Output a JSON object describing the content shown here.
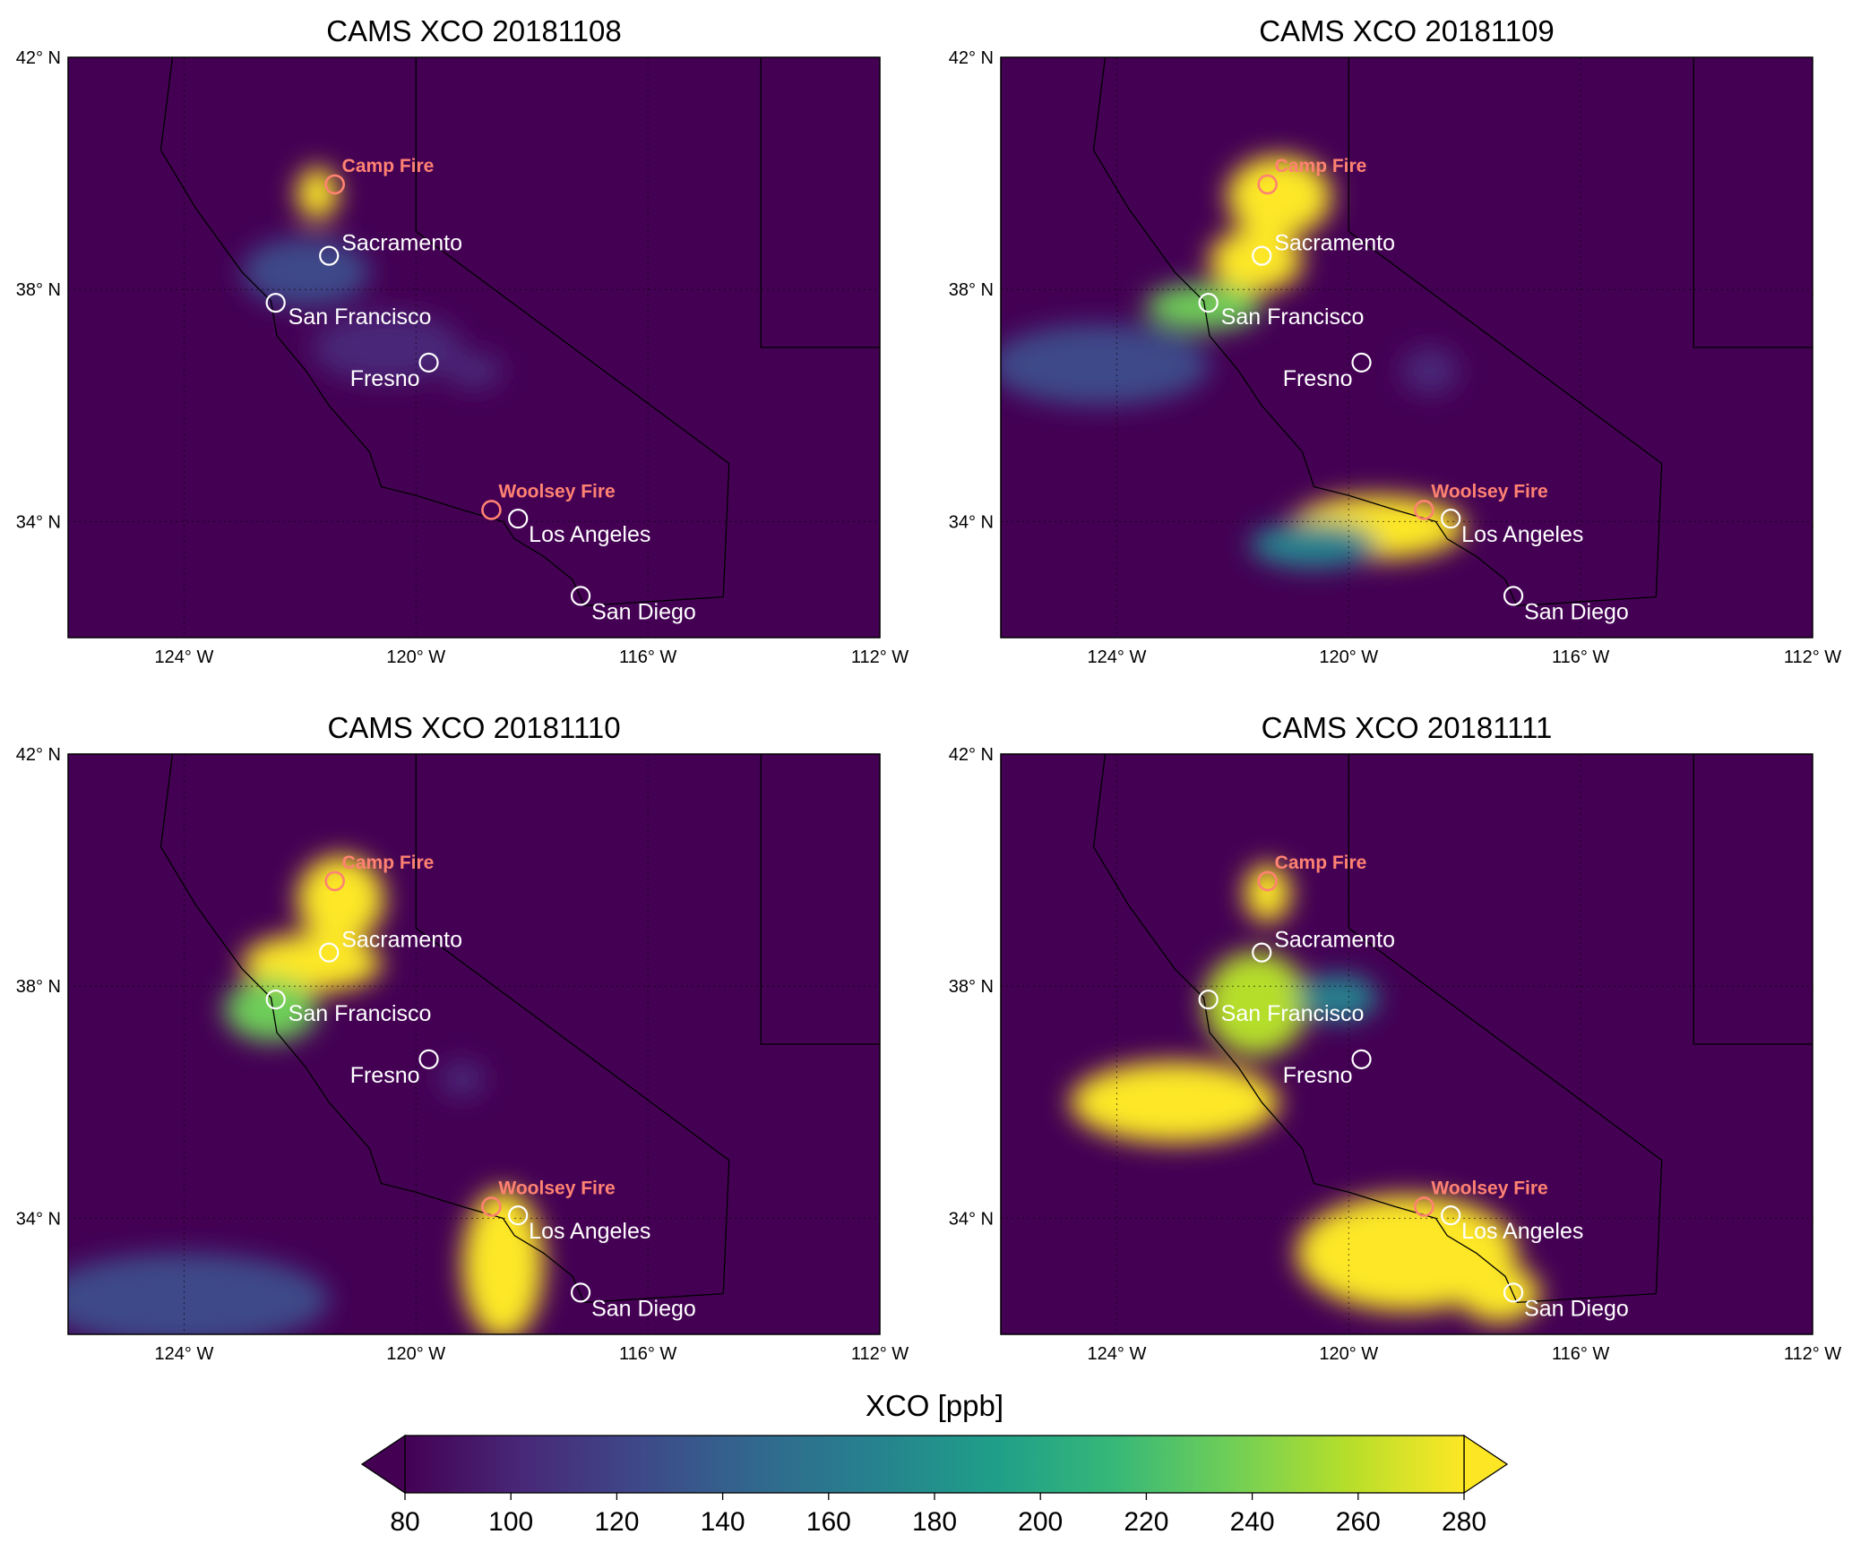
{
  "colors": {
    "background": "#440154",
    "city_marker": "#ffffff",
    "fire_marker": "#ff8272",
    "viridis": [
      "#440154",
      "#482878",
      "#3e4989",
      "#31688e",
      "#26828e",
      "#1f9e89",
      "#35b779",
      "#6ece58",
      "#b5de2b",
      "#fde725"
    ]
  },
  "extent": {
    "lon": [
      -126,
      -112
    ],
    "lat": [
      32,
      42
    ]
  },
  "ticks": {
    "lon": [
      {
        "v": -124,
        "label": "124° W"
      },
      {
        "v": -120,
        "label": "120° W"
      },
      {
        "v": -116,
        "label": "116° W"
      },
      {
        "v": -112,
        "label": "112° W"
      }
    ],
    "lat": [
      {
        "v": 42,
        "label": "42° N"
      },
      {
        "v": 38,
        "label": "38° N"
      },
      {
        "v": 34,
        "label": "34° N"
      }
    ]
  },
  "cities": [
    {
      "name": "Sacramento",
      "lon": -121.5,
      "lat": 38.58
    },
    {
      "name": "San Francisco",
      "lon": -122.42,
      "lat": 37.77
    },
    {
      "name": "Fresno",
      "lon": -119.78,
      "lat": 36.74
    },
    {
      "name": "Los Angeles",
      "lon": -118.24,
      "lat": 34.05
    },
    {
      "name": "San Diego",
      "lon": -117.16,
      "lat": 32.72
    }
  ],
  "fires": [
    {
      "name": "Camp Fire",
      "lon": -121.4,
      "lat": 39.81
    },
    {
      "name": "Woolsey Fire",
      "lon": -118.7,
      "lat": 34.2
    }
  ],
  "panels": [
    {
      "title": "CAMS XCO 20181108",
      "plumes": [
        {
          "lon": -121.7,
          "lat": 39.65,
          "rx": 0.35,
          "ry": 0.45,
          "v": 300
        },
        {
          "lon": -121.9,
          "lat": 38.3,
          "rx": 1.1,
          "ry": 0.6,
          "v": 120
        },
        {
          "lon": -120.5,
          "lat": 37.0,
          "rx": 1.3,
          "ry": 0.6,
          "v": 105
        },
        {
          "lon": -119.0,
          "lat": 36.6,
          "rx": 0.5,
          "ry": 0.3,
          "v": 110
        }
      ]
    },
    {
      "title": "CAMS XCO 20181109",
      "plumes": [
        {
          "lon": -121.2,
          "lat": 39.6,
          "rx": 0.9,
          "ry": 0.7,
          "v": 300
        },
        {
          "lon": -121.6,
          "lat": 38.5,
          "rx": 0.8,
          "ry": 0.55,
          "v": 300
        },
        {
          "lon": -122.5,
          "lat": 37.7,
          "rx": 1.0,
          "ry": 0.4,
          "v": 230
        },
        {
          "lon": -124.3,
          "lat": 36.7,
          "rx": 1.9,
          "ry": 0.7,
          "v": 135
        },
        {
          "lon": -119.5,
          "lat": 33.9,
          "rx": 1.5,
          "ry": 0.55,
          "v": 290
        },
        {
          "lon": -120.6,
          "lat": 33.6,
          "rx": 1.1,
          "ry": 0.4,
          "v": 170
        },
        {
          "lon": -118.6,
          "lat": 36.6,
          "rx": 0.5,
          "ry": 0.4,
          "v": 110
        }
      ]
    },
    {
      "title": "CAMS XCO 20181110",
      "plumes": [
        {
          "lon": -121.3,
          "lat": 39.5,
          "rx": 0.75,
          "ry": 0.75,
          "v": 300
        },
        {
          "lon": -121.8,
          "lat": 38.4,
          "rx": 1.2,
          "ry": 0.5,
          "v": 300
        },
        {
          "lon": -122.5,
          "lat": 37.6,
          "rx": 0.8,
          "ry": 0.55,
          "v": 230
        },
        {
          "lon": -118.5,
          "lat": 33.2,
          "rx": 0.7,
          "ry": 1.3,
          "v": 300
        },
        {
          "lon": -124.0,
          "lat": 32.6,
          "rx": 2.5,
          "ry": 0.8,
          "v": 115
        },
        {
          "lon": -119.2,
          "lat": 36.4,
          "rx": 0.4,
          "ry": 0.3,
          "v": 110
        }
      ]
    },
    {
      "title": "CAMS XCO 20181111",
      "plumes": [
        {
          "lon": -121.4,
          "lat": 39.6,
          "rx": 0.4,
          "ry": 0.5,
          "v": 280
        },
        {
          "lon": -121.6,
          "lat": 37.7,
          "rx": 0.9,
          "ry": 0.9,
          "v": 260
        },
        {
          "lon": -123.0,
          "lat": 36.0,
          "rx": 1.8,
          "ry": 0.7,
          "v": 300
        },
        {
          "lon": -119.0,
          "lat": 33.4,
          "rx": 1.9,
          "ry": 1.0,
          "v": 300
        },
        {
          "lon": -117.4,
          "lat": 32.7,
          "rx": 0.7,
          "ry": 0.5,
          "v": 290
        },
        {
          "lon": -120.2,
          "lat": 37.8,
          "rx": 0.7,
          "ry": 0.4,
          "v": 160
        }
      ]
    }
  ],
  "colorbar": {
    "label": "XCO [ppb]",
    "min": 80,
    "max": 280,
    "ticks": [
      "80",
      "100",
      "120",
      "140",
      "160",
      "180",
      "200",
      "220",
      "240",
      "260",
      "280"
    ]
  }
}
